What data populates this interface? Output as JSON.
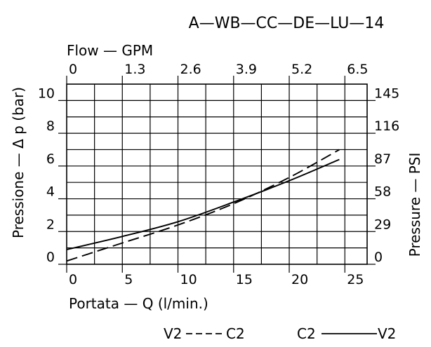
{
  "chart_data": {
    "type": "line",
    "title": "A—WB—CC—DE—LU—14",
    "xlabel": "Portata  —  Q  (l/min.)",
    "x2label": "Flow — GPM",
    "ylabel": "Pressione  —  Δ p  (bar)",
    "y2label": "Pressure  —  PSI",
    "xlim": [
      0,
      27
    ],
    "ylim": [
      0,
      11
    ],
    "grid": true,
    "x_ticks": [
      "0",
      "5",
      "10",
      "15",
      "20",
      "25"
    ],
    "x_tick_values": [
      0,
      5,
      10,
      15,
      20,
      25
    ],
    "x2_ticks": [
      "0",
      "1.3",
      "2.6",
      "3.9",
      "5.2",
      "6.5"
    ],
    "x2_tick_values": [
      0,
      5,
      10,
      15,
      20,
      25
    ],
    "y_ticks": [
      "0",
      "2",
      "4",
      "6",
      "8",
      "10"
    ],
    "y_tick_values": [
      0,
      2,
      4,
      6,
      8,
      10
    ],
    "y2_ticks": [
      "0",
      "29",
      "58",
      "87",
      "116",
      "145"
    ],
    "y2_tick_values": [
      0,
      2,
      4,
      6,
      8,
      10
    ],
    "series": [
      {
        "name": "V2 — C2",
        "style": "dashed",
        "x": [
          0,
          5,
          10,
          15,
          20,
          24.5
        ],
        "y": [
          0.2,
          1.3,
          2.4,
          3.7,
          5.3,
          7.0
        ]
      },
      {
        "name": "C2 — V2",
        "style": "solid",
        "x": [
          0,
          5,
          10,
          15,
          20,
          24.5
        ],
        "y": [
          0.9,
          1.7,
          2.6,
          3.8,
          5.1,
          6.4
        ]
      }
    ],
    "legend": {
      "position": "bottom-right",
      "entries": [
        {
          "left": "V2",
          "right": "C2",
          "style": "dashed"
        },
        {
          "left": "C2",
          "right": "V2",
          "style": "solid"
        }
      ]
    }
  }
}
